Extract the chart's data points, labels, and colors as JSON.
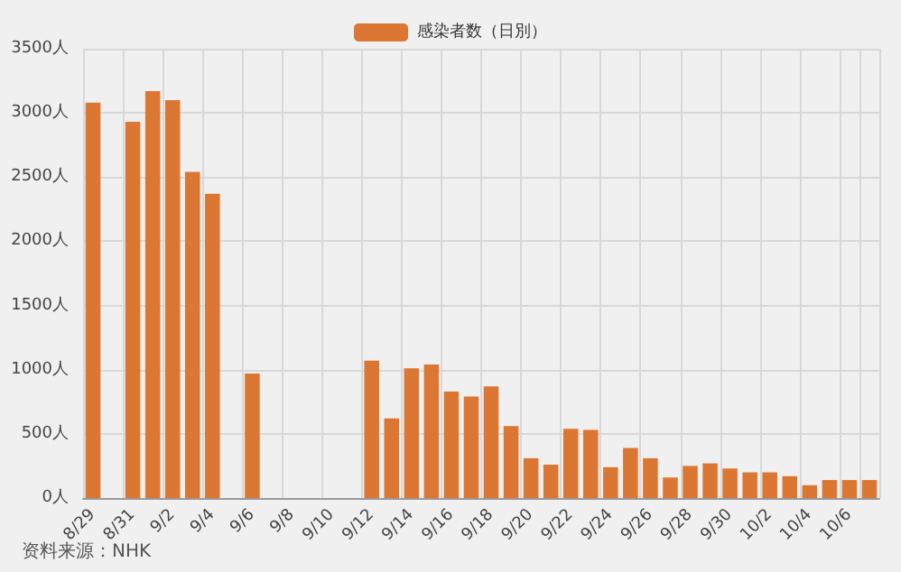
{
  "chart_data": {
    "type": "bar",
    "categories": [
      "8/29",
      null,
      "8/31",
      null,
      "9/2",
      null,
      "9/4",
      null,
      "9/6",
      null,
      "9/8",
      null,
      "9/10",
      null,
      "9/12",
      null,
      "9/14",
      null,
      "9/16",
      null,
      "9/18",
      null,
      "9/20",
      null,
      "9/22",
      null,
      "9/24",
      null,
      "9/26",
      null,
      "9/28",
      null,
      "9/30",
      null,
      "10/2",
      null,
      "10/4",
      null,
      "10/6",
      null
    ],
    "series": [
      {
        "name": "感染者数（日別）",
        "color": "#dc7633",
        "values": [
          3080,
          null,
          2930,
          3170,
          3100,
          2540,
          2370,
          null,
          970,
          null,
          null,
          null,
          null,
          null,
          1070,
          620,
          1010,
          1040,
          830,
          790,
          870,
          560,
          310,
          260,
          540,
          530,
          240,
          390,
          310,
          160,
          250,
          270,
          230,
          200,
          200,
          170,
          100,
          140,
          140,
          140
        ]
      }
    ],
    "ylim": [
      0,
      3500
    ],
    "yticks": [
      {
        "value": 0,
        "label": "0人"
      },
      {
        "value": 500,
        "label": "500人"
      },
      {
        "value": 1000,
        "label": "1000人"
      },
      {
        "value": 1500,
        "label": "1500人"
      },
      {
        "value": 2000,
        "label": "2000人"
      },
      {
        "value": 2500,
        "label": "2500人"
      },
      {
        "value": 3000,
        "label": "3000人"
      },
      {
        "value": 3500,
        "label": "3500人"
      }
    ],
    "grid": true,
    "legend": "top",
    "annotations": [
      "资料来源：NHK"
    ]
  }
}
